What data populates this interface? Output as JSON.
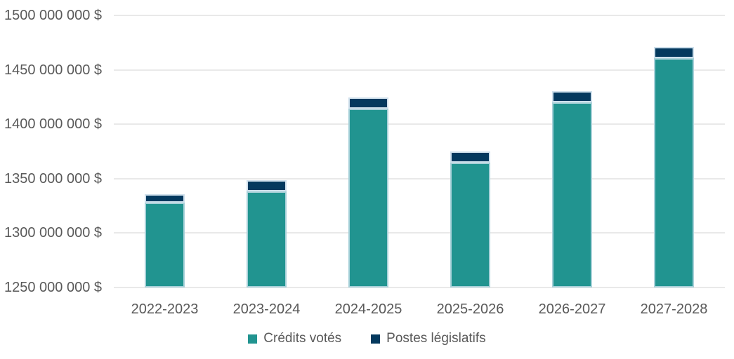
{
  "chart_data": {
    "type": "bar",
    "stacked": true,
    "title": "",
    "xlabel": "",
    "ylabel": "",
    "categories": [
      "2022-2023",
      "2023-2024",
      "2024-2025",
      "2025-2026",
      "2026-2027",
      "2027-2028"
    ],
    "series": [
      {
        "name": "Crédits votés",
        "color": "#219490",
        "values": [
          1328000000,
          1338000000,
          1414000000,
          1365000000,
          1420000000,
          1461000000
        ]
      },
      {
        "name": "Postes législatifs",
        "color": "#04395e",
        "values": [
          8000000,
          10000000,
          10000000,
          10000000,
          10000000,
          10000000
        ]
      }
    ],
    "ylim": [
      1250000000,
      1500000000
    ],
    "ytick_step": 50000000,
    "yticks": [
      {
        "value": 1500000000,
        "label": "1500 000 000 $"
      },
      {
        "value": 1450000000,
        "label": "1450 000 000 $"
      },
      {
        "value": 1400000000,
        "label": "1400 000 000 $"
      },
      {
        "value": 1350000000,
        "label": "1350 000 000 $"
      },
      {
        "value": 1300000000,
        "label": "1300 000 000 $"
      },
      {
        "value": 1250000000,
        "label": "1250 000 000 $"
      }
    ],
    "grid": "horizontal",
    "legend_position": "bottom",
    "colors": {
      "background": "#ffffff",
      "grid": "#e9e9e9",
      "text": "#595959",
      "voted": "#219490",
      "statutory": "#04395e",
      "segment_border": "#cfe0ec"
    }
  }
}
